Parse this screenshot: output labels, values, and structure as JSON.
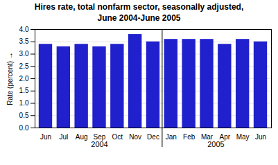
{
  "chart_data": {
    "type": "bar",
    "title": "Hires rate, total nonfarm sector, seasonally adjusted,\nJune 2004-June 2005",
    "ylabel": "Rate (percent)",
    "categories": [
      "Jun",
      "Jul",
      "Aug",
      "Sep",
      "Oct",
      "Nov",
      "Dec",
      "Jan",
      "Feb",
      "Mar",
      "Apr",
      "May",
      "Jun"
    ],
    "values": [
      3.4,
      3.3,
      3.4,
      3.3,
      3.4,
      3.8,
      3.5,
      3.6,
      3.6,
      3.6,
      3.4,
      3.6,
      3.5
    ],
    "color": "#2020cc",
    "ylim": [
      0.0,
      4.0
    ],
    "yticks": [
      {
        "value": 0,
        "label": "0.0"
      },
      0.5,
      {
        "value": 1,
        "label": "1.0"
      },
      1.5,
      {
        "value": 2,
        "label": "2.0"
      },
      2.5,
      {
        "value": 3,
        "label": "3.0"
      },
      3.5,
      {
        "value": 4,
        "label": "4.0"
      }
    ],
    "grid": true,
    "annotations": [
      "2004",
      "2005"
    ]
  }
}
